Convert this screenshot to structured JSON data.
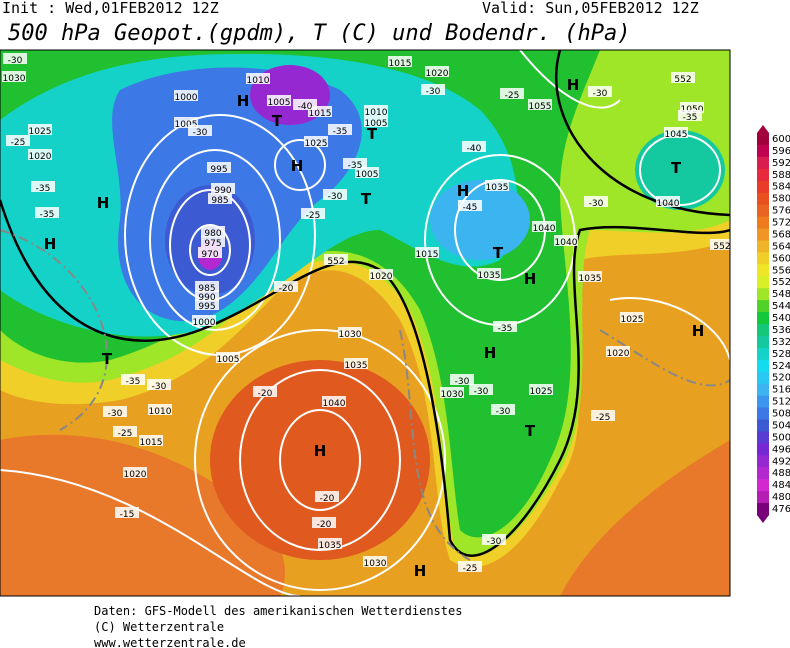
{
  "header": {
    "init": "Init : Wed,01FEB2012 12Z",
    "valid": "Valid: Sun,05FEB2012 12Z",
    "title": "500 hPa Geopot.(gpdm), T (C) und Bodendr. (hPa)"
  },
  "colorbar": {
    "ticks": [
      600,
      596,
      592,
      588,
      584,
      580,
      576,
      572,
      568,
      564,
      560,
      556,
      552,
      548,
      544,
      540,
      536,
      532,
      528,
      524,
      520,
      516,
      512,
      508,
      504,
      500,
      496,
      492,
      488,
      484,
      480,
      476
    ],
    "colors": [
      "#a0003c",
      "#c00050",
      "#d81e4e",
      "#e8283c",
      "#e83c28",
      "#e85020",
      "#e86420",
      "#f07a1e",
      "#f09624",
      "#f0b428",
      "#f0d028",
      "#f0e628",
      "#d8f028",
      "#a0e628",
      "#50d228",
      "#14c83c",
      "#14c878",
      "#14c8a0",
      "#14d2c8",
      "#14dcf0",
      "#28c8f0",
      "#3cb4f0",
      "#3c96f0",
      "#3c78e6",
      "#3c5ad2",
      "#5a3cd2",
      "#7828d2",
      "#9628d2",
      "#b428d2",
      "#d228d2",
      "#b41eb4",
      "#780078"
    ]
  },
  "map": {
    "labels": [
      "H",
      "H",
      "H",
      "H",
      "H",
      "H",
      "H",
      "H",
      "H",
      "H",
      "H",
      "T",
      "T",
      "T",
      "T",
      "T",
      "T",
      "T",
      "1030",
      "1025",
      "1020",
      "1000",
      "1005",
      "1010",
      "1005",
      "1015",
      "1010",
      "1005",
      "1025",
      "1005",
      "1015",
      "1020",
      "1055",
      "1050",
      "1045",
      "1040",
      "1035",
      "1040",
      "1040",
      "1035",
      "1015",
      "1020",
      "1030",
      "1035",
      "1040",
      "1030",
      "1025",
      "1020",
      "1025",
      "1035",
      "1035",
      "1030",
      "1005",
      "1010",
      "1015",
      "1020",
      "1000",
      "995",
      "990",
      "985",
      "980",
      "975",
      "970",
      "995",
      "990",
      "985",
      "-35",
      "-35",
      "-30",
      "-20",
      "-20",
      "-20",
      "-15",
      "-25",
      "-30",
      "-35",
      "-30",
      "-45",
      "-40",
      "-30",
      "-30",
      "-35",
      "-30",
      "-35",
      "-30",
      "-30",
      "-25",
      "-30",
      "-30",
      "-25",
      "-25",
      "-40",
      "-35",
      "-30",
      "-35",
      "-25",
      "-25",
      "-20",
      "-30",
      "552",
      "552",
      "552"
    ]
  },
  "footer": {
    "source": "Daten: GFS-Modell des amerikanischen Wetterdienstes",
    "copyright": "(C) Wetterzentrale",
    "url": "www.wetterzentrale.de"
  }
}
